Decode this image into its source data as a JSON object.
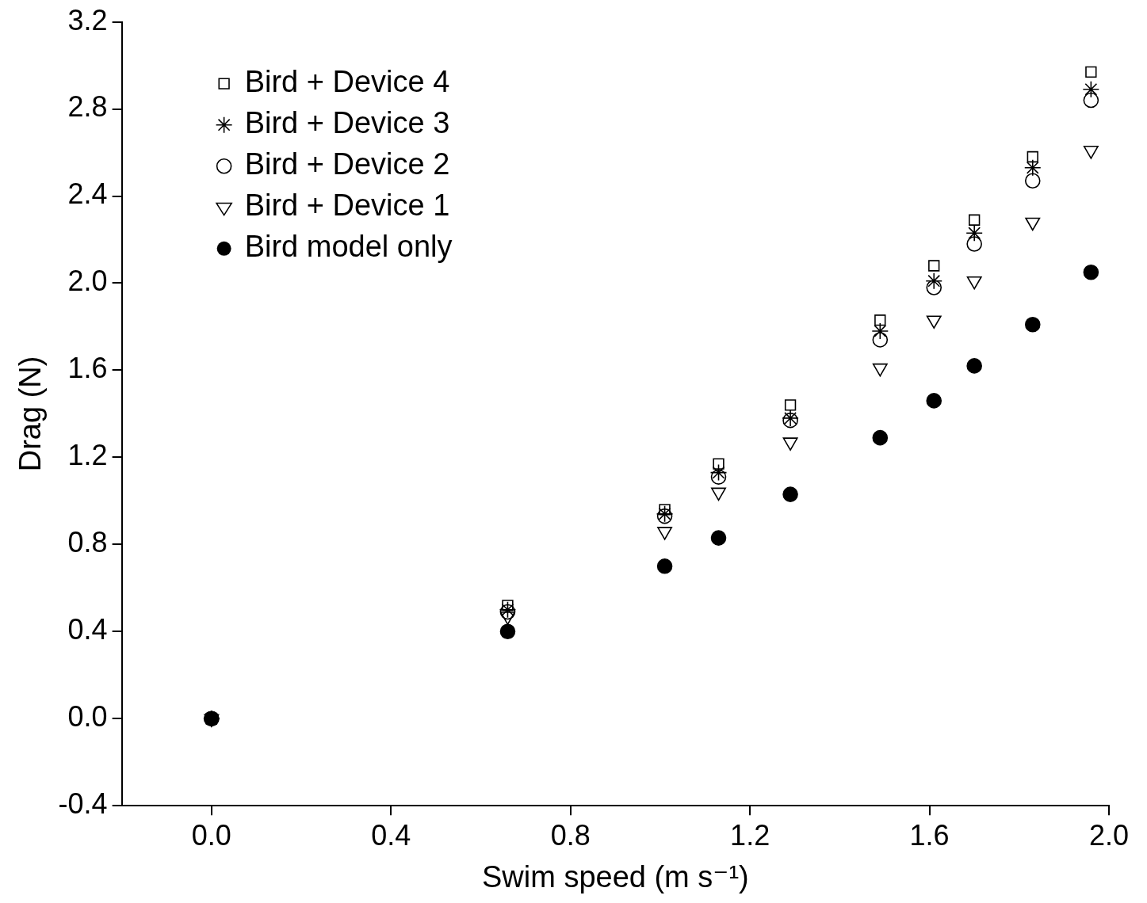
{
  "chart_data": {
    "type": "scatter",
    "x_label": "Swim speed (m s⁻¹)",
    "y_label": "Drag (N)",
    "x": [
      0,
      0.66,
      1.01,
      1.13,
      1.29,
      1.49,
      1.61,
      1.7,
      1.83,
      1.96
    ],
    "series": [
      {
        "name": "Bird + Device 4",
        "color": "#000000",
        "marker": "square",
        "values": [
          0,
          0.52,
          0.96,
          1.17,
          1.44,
          1.83,
          2.08,
          2.29,
          2.58,
          2.97
        ]
      },
      {
        "name": "Bird + Device 3",
        "color": "#000000",
        "marker": "star",
        "values": [
          0,
          0.5,
          0.94,
          1.13,
          1.38,
          1.78,
          2.01,
          2.23,
          2.53,
          2.89
        ]
      },
      {
        "name": "Bird + Device 2",
        "color": "#000000",
        "marker": "circle",
        "values": [
          0,
          0.49,
          0.93,
          1.11,
          1.37,
          1.74,
          1.98,
          2.18,
          2.47,
          2.84
        ]
      },
      {
        "name": "Bird + Device 1",
        "color": "#000000",
        "marker": "triangle-down",
        "values": [
          0,
          0.47,
          0.86,
          1.04,
          1.27,
          1.61,
          1.83,
          2.01,
          2.28,
          2.61
        ]
      },
      {
        "name": "Bird model only",
        "color": "#000000",
        "marker": "filled-circle",
        "values": [
          0,
          0.4,
          0.7,
          0.83,
          1.03,
          1.29,
          1.46,
          1.62,
          1.81,
          2.05
        ]
      }
    ],
    "xlim": [
      -0.2,
      2.0
    ],
    "xticks": [
      {
        "value": 0,
        "label": "0.0"
      },
      0.4,
      0.8,
      1.2,
      1.6,
      {
        "value": 2,
        "label": "2.0"
      }
    ],
    "ylim": [
      -0.4,
      3.2
    ],
    "yticks": [
      -0.4,
      {
        "value": 0,
        "label": "0.0"
      },
      0.4,
      0.8,
      1.2,
      1.6,
      {
        "value": 2,
        "label": "2.0"
      },
      2.4,
      2.8,
      3.2
    ],
    "grid": false,
    "legend": "upper left"
  }
}
